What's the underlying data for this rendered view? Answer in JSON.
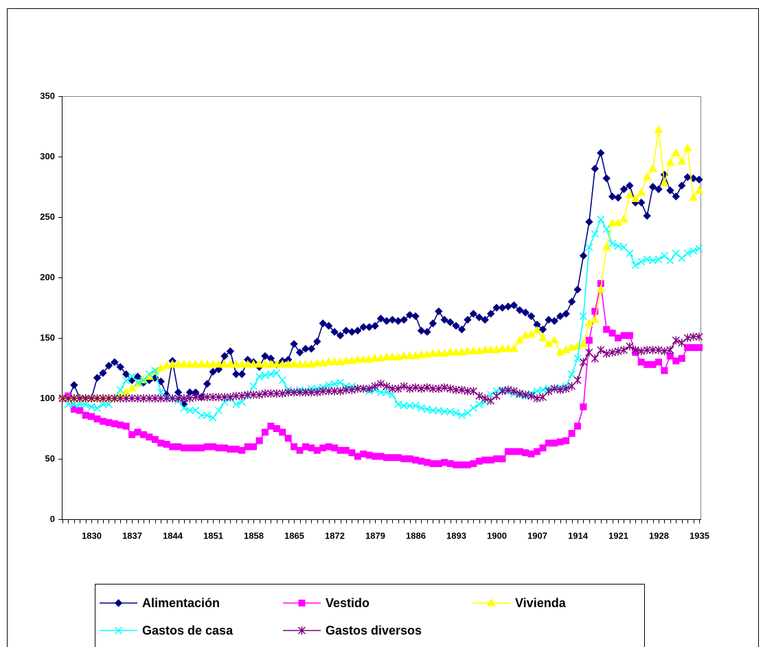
{
  "chart_data": {
    "type": "line",
    "categories": [
      null,
      null,
      null,
      null,
      null,
      "1830",
      null,
      null,
      null,
      null,
      null,
      null,
      "1837",
      null,
      null,
      null,
      null,
      null,
      null,
      "1844",
      null,
      null,
      null,
      null,
      null,
      null,
      "1851",
      null,
      null,
      null,
      null,
      null,
      null,
      "1858",
      null,
      null,
      null,
      null,
      null,
      null,
      "1865",
      null,
      null,
      null,
      null,
      null,
      null,
      "1872",
      null,
      null,
      null,
      null,
      null,
      null,
      "1879",
      null,
      null,
      null,
      null,
      null,
      null,
      "1886",
      null,
      null,
      null,
      null,
      null,
      null,
      "1893",
      null,
      null,
      null,
      null,
      null,
      null,
      "1900",
      null,
      null,
      null,
      null,
      null,
      null,
      "1907",
      null,
      null,
      null,
      null,
      null,
      null,
      "1914",
      null,
      null,
      null,
      null,
      null,
      null,
      "1921",
      null,
      null,
      null,
      null,
      null,
      null,
      "1928",
      null,
      null,
      null,
      null,
      null,
      null,
      "1935"
    ],
    "ylim": [
      0,
      350
    ],
    "yticks": [
      0,
      50,
      100,
      150,
      200,
      250,
      300,
      350
    ],
    "grid": false,
    "series": [
      {
        "name": "Alimentación",
        "color": "#000080",
        "marker": "diamond",
        "values": [
          100,
          100,
          111,
          100,
          100,
          100,
          117,
          121,
          127,
          130,
          126,
          120,
          115,
          118,
          113,
          115,
          117,
          114,
          103,
          131,
          105,
          95,
          105,
          105,
          101,
          112,
          122,
          124,
          135,
          139,
          120,
          120,
          132,
          130,
          126,
          135,
          133,
          128,
          131,
          132,
          145,
          138,
          141,
          141,
          147,
          162,
          160,
          155,
          152,
          156,
          155,
          156,
          159,
          159,
          160,
          166,
          164,
          165,
          164,
          165,
          169,
          168,
          156,
          155,
          162,
          172,
          165,
          163,
          160,
          157,
          165,
          170,
          167,
          165,
          170,
          175,
          175,
          176,
          177,
          173,
          171,
          168,
          161,
          157,
          165,
          164,
          168,
          170,
          180,
          190,
          218,
          246,
          290,
          303,
          282,
          267,
          266,
          273,
          276,
          262,
          262,
          251,
          275,
          273,
          285,
          272,
          267,
          276,
          283,
          282,
          281
        ]
      },
      {
        "name": "Vestido",
        "color": "#ff00ff",
        "marker": "square",
        "values": [
          100,
          102,
          91,
          90,
          86,
          85,
          83,
          81,
          80,
          79,
          78,
          77,
          70,
          72,
          70,
          68,
          66,
          63,
          62,
          60,
          60,
          59,
          59,
          59,
          59,
          60,
          60,
          59,
          59,
          58,
          58,
          57,
          60,
          60,
          65,
          72,
          77,
          75,
          72,
          67,
          60,
          57,
          60,
          59,
          57,
          59,
          60,
          59,
          57,
          57,
          55,
          52,
          54,
          53,
          52,
          52,
          51,
          51,
          51,
          50,
          50,
          49,
          48,
          47,
          46,
          46,
          47,
          46,
          45,
          45,
          45,
          46,
          48,
          49,
          49,
          50,
          50,
          56,
          56,
          56,
          55,
          54,
          56,
          59,
          63,
          63,
          64,
          65,
          71,
          77,
          93,
          148,
          172,
          195,
          157,
          154,
          150,
          152,
          152,
          138,
          130,
          128,
          128,
          130,
          123,
          135,
          131,
          133,
          142,
          142,
          142
        ]
      },
      {
        "name": "Vivienda",
        "color": "#ffff00",
        "marker": "triangle",
        "values": [
          100,
          100,
          100,
          100,
          100,
          100,
          100,
          100,
          100,
          100,
          102,
          105,
          108,
          112,
          115,
          118,
          122,
          125,
          127,
          128,
          128,
          128,
          128,
          128,
          128,
          128,
          128,
          128,
          128,
          128,
          128,
          128,
          128,
          128,
          128,
          128,
          128,
          128,
          128,
          128,
          128,
          128,
          128,
          128,
          129,
          129,
          130,
          130,
          130,
          131,
          131,
          132,
          132,
          132,
          133,
          133,
          134,
          134,
          134,
          135,
          135,
          135,
          136,
          136,
          137,
          137,
          137,
          138,
          138,
          138,
          139,
          139,
          139,
          140,
          140,
          140,
          141,
          141,
          141,
          148,
          152,
          153,
          156,
          150,
          145,
          148,
          138,
          140,
          142,
          143,
          145,
          162,
          165,
          190,
          225,
          245,
          245,
          248,
          268,
          265,
          270,
          283,
          290,
          322,
          278,
          295,
          303,
          296,
          307,
          266,
          272
        ]
      },
      {
        "name": "Gastos de casa",
        "color": "#00ffff",
        "marker": "x",
        "values": [
          100,
          95,
          95,
          95,
          95,
          93,
          92,
          95,
          95,
          100,
          107,
          115,
          118,
          113,
          115,
          120,
          123,
          105,
          101,
          100,
          98,
          92,
          90,
          90,
          86,
          86,
          84,
          90,
          97,
          100,
          95,
          97,
          102,
          110,
          118,
          119,
          120,
          121,
          115,
          107,
          105,
          107,
          106,
          108,
          108,
          109,
          111,
          112,
          113,
          110,
          110,
          108,
          108,
          106,
          107,
          105,
          105,
          103,
          95,
          94,
          94,
          94,
          92,
          91,
          90,
          90,
          89,
          89,
          88,
          86,
          88,
          92,
          95,
          97,
          103,
          106,
          107,
          106,
          104,
          103,
          102,
          104,
          106,
          107,
          108,
          108,
          109,
          110,
          120,
          133,
          168,
          225,
          236,
          248,
          240,
          228,
          226,
          225,
          220,
          210,
          213,
          215,
          214,
          215,
          218,
          214,
          220,
          216,
          220,
          222,
          224
        ]
      },
      {
        "name": "Gastos diversos",
        "color": "#800080",
        "marker": "star",
        "values": [
          100,
          100,
          100,
          100,
          100,
          100,
          100,
          100,
          100,
          100,
          100,
          100,
          100,
          100,
          100,
          100,
          100,
          100,
          100,
          100,
          100,
          100,
          100,
          101,
          101,
          101,
          101,
          101,
          101,
          101,
          102,
          102,
          103,
          103,
          103,
          104,
          104,
          104,
          104,
          105,
          105,
          105,
          105,
          105,
          105,
          106,
          106,
          106,
          106,
          107,
          107,
          108,
          108,
          108,
          110,
          112,
          110,
          108,
          108,
          110,
          108,
          109,
          108,
          109,
          108,
          108,
          109,
          108,
          107,
          107,
          106,
          106,
          102,
          100,
          98,
          102,
          106,
          107,
          106,
          104,
          103,
          102,
          100,
          101,
          106,
          108,
          107,
          108,
          110,
          115,
          130,
          138,
          133,
          140,
          137,
          138,
          139,
          140,
          143,
          140,
          139,
          140,
          140,
          140,
          139,
          140,
          148,
          146,
          150,
          151,
          151
        ]
      }
    ]
  }
}
